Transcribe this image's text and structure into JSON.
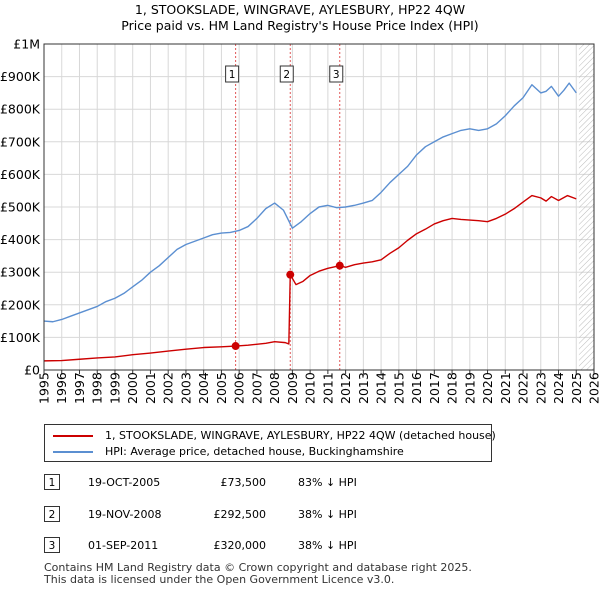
{
  "title": {
    "line1": "1, STOOKSLADE, WINGRAVE, AYLESBURY, HP22 4QW",
    "line2": "Price paid vs. HM Land Registry's House Price Index (HPI)"
  },
  "colors": {
    "red": "#cc0000",
    "blue": "#5b8fd1",
    "grid": "#d8d8d8",
    "axis": "#333333"
  },
  "chart_data": {
    "type": "line",
    "title": "1, STOOKSLADE, WINGRAVE, AYLESBURY, HP22 4QW — Price paid vs. HM Land Registry's House Price Index (HPI)",
    "xlabel": "",
    "ylabel": "",
    "xlim": [
      1995,
      2026
    ],
    "ylim": [
      0,
      1000000
    ],
    "y_ticks": [
      {
        "value": 0,
        "label": "£0"
      },
      {
        "value": 100000,
        "label": "£100K"
      },
      {
        "value": 200000,
        "label": "£200K"
      },
      {
        "value": 300000,
        "label": "£300K"
      },
      {
        "value": 400000,
        "label": "£400K"
      },
      {
        "value": 500000,
        "label": "£500K"
      },
      {
        "value": 600000,
        "label": "£600K"
      },
      {
        "value": 700000,
        "label": "£700K"
      },
      {
        "value": 800000,
        "label": "£800K"
      },
      {
        "value": 900000,
        "label": "£900K"
      },
      {
        "value": 1000000,
        "label": "£1M"
      }
    ],
    "x_ticks": [
      "1995",
      "1996",
      "1997",
      "1998",
      "1999",
      "2000",
      "2001",
      "2002",
      "2003",
      "2004",
      "2005",
      "2006",
      "2007",
      "2008",
      "2009",
      "2010",
      "2011",
      "2012",
      "2013",
      "2014",
      "2015",
      "2016",
      "2017",
      "2018",
      "2019",
      "2020",
      "2021",
      "2022",
      "2023",
      "2024",
      "2025",
      "2026"
    ],
    "grid": true,
    "legend_position": "below",
    "data_end": 2025.15,
    "series": [
      {
        "name": "1, STOOKSLADE, WINGRAVE, AYLESBURY, HP22 4QW (detached house)",
        "color": "#cc0000",
        "points": [
          [
            1995.0,
            28000
          ],
          [
            1996.0,
            29000
          ],
          [
            1997.0,
            33000
          ],
          [
            1998.0,
            37000
          ],
          [
            1999.0,
            40000
          ],
          [
            2000.0,
            47000
          ],
          [
            2001.0,
            52000
          ],
          [
            2002.0,
            58000
          ],
          [
            2003.0,
            64000
          ],
          [
            2004.0,
            69000
          ],
          [
            2005.0,
            71000
          ],
          [
            2005.8,
            73500
          ],
          [
            2006.5,
            76000
          ],
          [
            2007.5,
            82000
          ],
          [
            2008.0,
            87000
          ],
          [
            2008.6,
            84000
          ],
          [
            2008.8,
            80000
          ],
          [
            2008.88,
            292500
          ],
          [
            2009.2,
            262000
          ],
          [
            2009.6,
            272000
          ],
          [
            2010.0,
            290000
          ],
          [
            2010.5,
            303000
          ],
          [
            2011.0,
            312000
          ],
          [
            2011.67,
            320000
          ],
          [
            2012.0,
            315000
          ],
          [
            2012.5,
            323000
          ],
          [
            2013.0,
            328000
          ],
          [
            2013.5,
            332000
          ],
          [
            2014.0,
            338000
          ],
          [
            2014.5,
            358000
          ],
          [
            2015.0,
            375000
          ],
          [
            2015.5,
            398000
          ],
          [
            2016.0,
            418000
          ],
          [
            2016.5,
            432000
          ],
          [
            2017.0,
            448000
          ],
          [
            2017.5,
            458000
          ],
          [
            2018.0,
            465000
          ],
          [
            2018.5,
            462000
          ],
          [
            2019.0,
            460000
          ],
          [
            2019.5,
            458000
          ],
          [
            2020.0,
            455000
          ],
          [
            2020.5,
            465000
          ],
          [
            2021.0,
            478000
          ],
          [
            2021.5,
            495000
          ],
          [
            2022.0,
            515000
          ],
          [
            2022.5,
            535000
          ],
          [
            2023.0,
            528000
          ],
          [
            2023.3,
            518000
          ],
          [
            2023.6,
            532000
          ],
          [
            2024.0,
            520000
          ],
          [
            2024.5,
            535000
          ],
          [
            2025.0,
            525000
          ]
        ]
      },
      {
        "name": "HPI: Average price, detached house, Buckinghamshire",
        "color": "#5b8fd1",
        "points": [
          [
            1995.0,
            150000
          ],
          [
            1995.5,
            148000
          ],
          [
            1996.0,
            155000
          ],
          [
            1996.5,
            165000
          ],
          [
            1997.0,
            175000
          ],
          [
            1997.5,
            185000
          ],
          [
            1998.0,
            195000
          ],
          [
            1998.5,
            210000
          ],
          [
            1999.0,
            220000
          ],
          [
            1999.5,
            235000
          ],
          [
            2000.0,
            255000
          ],
          [
            2000.5,
            275000
          ],
          [
            2001.0,
            300000
          ],
          [
            2001.5,
            320000
          ],
          [
            2002.0,
            345000
          ],
          [
            2002.5,
            370000
          ],
          [
            2003.0,
            385000
          ],
          [
            2003.5,
            395000
          ],
          [
            2004.0,
            405000
          ],
          [
            2004.5,
            415000
          ],
          [
            2005.0,
            420000
          ],
          [
            2005.5,
            422000
          ],
          [
            2006.0,
            428000
          ],
          [
            2006.5,
            440000
          ],
          [
            2007.0,
            465000
          ],
          [
            2007.5,
            495000
          ],
          [
            2008.0,
            512000
          ],
          [
            2008.5,
            490000
          ],
          [
            2009.0,
            435000
          ],
          [
            2009.5,
            455000
          ],
          [
            2010.0,
            480000
          ],
          [
            2010.5,
            500000
          ],
          [
            2011.0,
            505000
          ],
          [
            2011.5,
            498000
          ],
          [
            2012.0,
            500000
          ],
          [
            2012.5,
            505000
          ],
          [
            2013.0,
            512000
          ],
          [
            2013.5,
            520000
          ],
          [
            2014.0,
            545000
          ],
          [
            2014.5,
            575000
          ],
          [
            2015.0,
            600000
          ],
          [
            2015.5,
            625000
          ],
          [
            2016.0,
            660000
          ],
          [
            2016.5,
            685000
          ],
          [
            2017.0,
            700000
          ],
          [
            2017.5,
            715000
          ],
          [
            2018.0,
            725000
          ],
          [
            2018.5,
            735000
          ],
          [
            2019.0,
            740000
          ],
          [
            2019.5,
            735000
          ],
          [
            2020.0,
            740000
          ],
          [
            2020.5,
            755000
          ],
          [
            2021.0,
            780000
          ],
          [
            2021.5,
            810000
          ],
          [
            2022.0,
            835000
          ],
          [
            2022.5,
            875000
          ],
          [
            2022.8,
            860000
          ],
          [
            2023.0,
            850000
          ],
          [
            2023.3,
            855000
          ],
          [
            2023.6,
            870000
          ],
          [
            2024.0,
            840000
          ],
          [
            2024.3,
            858000
          ],
          [
            2024.6,
            880000
          ],
          [
            2025.0,
            850000
          ]
        ]
      }
    ],
    "markers": [
      {
        "label": "1",
        "x": 2005.8,
        "y": 73500
      },
      {
        "label": "2",
        "x": 2008.88,
        "y": 292500
      },
      {
        "label": "3",
        "x": 2011.67,
        "y": 320000
      }
    ]
  },
  "legend": {
    "items": [
      {
        "label": "1, STOOKSLADE, WINGRAVE, AYLESBURY, HP22 4QW (detached house)",
        "color": "#cc0000"
      },
      {
        "label": "HPI: Average price, detached house, Buckinghamshire",
        "color": "#5b8fd1"
      }
    ]
  },
  "transactions": [
    {
      "num": "1",
      "date": "19-OCT-2005",
      "price": "£73,500",
      "hpi": "83% ↓ HPI"
    },
    {
      "num": "2",
      "date": "19-NOV-2008",
      "price": "£292,500",
      "hpi": "38% ↓ HPI"
    },
    {
      "num": "3",
      "date": "01-SEP-2011",
      "price": "£320,000",
      "hpi": "38% ↓ HPI"
    }
  ],
  "footer": {
    "line1": "Contains HM Land Registry data © Crown copyright and database right 2025.",
    "line2": "This data is licensed under the Open Government Licence v3.0."
  }
}
